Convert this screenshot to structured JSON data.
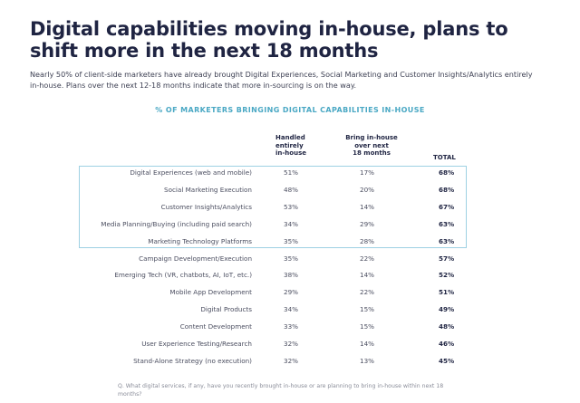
{
  "header": {
    "title_line1": "Digital capabilities moving in-house, plans to",
    "title_line2": "shift more in the next 18 months",
    "subtitle_line1": "Nearly 50% of client-side marketers have already brought Digital Experiences, Social Marketing and Customer Insights/Analytics entirely",
    "subtitle_line2": "in-house. Plans over the next 12-18 months indicate that more in-sourcing is on the way."
  },
  "colors": {
    "title": "#1f2442",
    "accent": "#4aa8c4",
    "box_border": "#9ed1e3"
  },
  "chart_data": {
    "type": "table",
    "title": "% OF MARKETERS BRINGING DIGITAL CAPABILITIES IN-HOUSE",
    "columns": [
      [
        "Handled",
        "entirely",
        "in-house"
      ],
      [
        "Bring in-house",
        "over next",
        "18 months"
      ],
      [
        "TOTAL"
      ]
    ],
    "highlighted_rows": 5,
    "rows": [
      {
        "label": "Digital Experiences (web and mobile)",
        "handled": "51%",
        "bring": "17%",
        "total": "68%"
      },
      {
        "label": "Social Marketing Execution",
        "handled": "48%",
        "bring": "20%",
        "total": "68%"
      },
      {
        "label": "Customer Insights/Analytics",
        "handled": "53%",
        "bring": "14%",
        "total": "67%"
      },
      {
        "label": "Media Planning/Buying (including paid search)",
        "handled": "34%",
        "bring": "29%",
        "total": "63%"
      },
      {
        "label": "Marketing Technology Platforms",
        "handled": "35%",
        "bring": "28%",
        "total": "63%"
      },
      {
        "label": "Campaign Development/Execution",
        "handled": "35%",
        "bring": "22%",
        "total": "57%"
      },
      {
        "label": "Emerging Tech (VR, chatbots, AI, IoT, etc.)",
        "handled": "38%",
        "bring": "14%",
        "total": "52%"
      },
      {
        "label": "Mobile App Development",
        "handled": "29%",
        "bring": "22%",
        "total": "51%"
      },
      {
        "label": "Digital Products",
        "handled": "34%",
        "bring": "15%",
        "total": "49%"
      },
      {
        "label": "Content Development",
        "handled": "33%",
        "bring": "15%",
        "total": "48%"
      },
      {
        "label": "User Experience Testing/Research",
        "handled": "32%",
        "bring": "14%",
        "total": "46%"
      },
      {
        "label": "Stand-Alone Strategy (no execution)",
        "handled": "32%",
        "bring": "13%",
        "total": "45%"
      }
    ]
  },
  "footnote": {
    "line1": "Q. What digital services, if any, have you recently brought in-house or are planning to bring in-house within next 18",
    "line2": "months?"
  }
}
